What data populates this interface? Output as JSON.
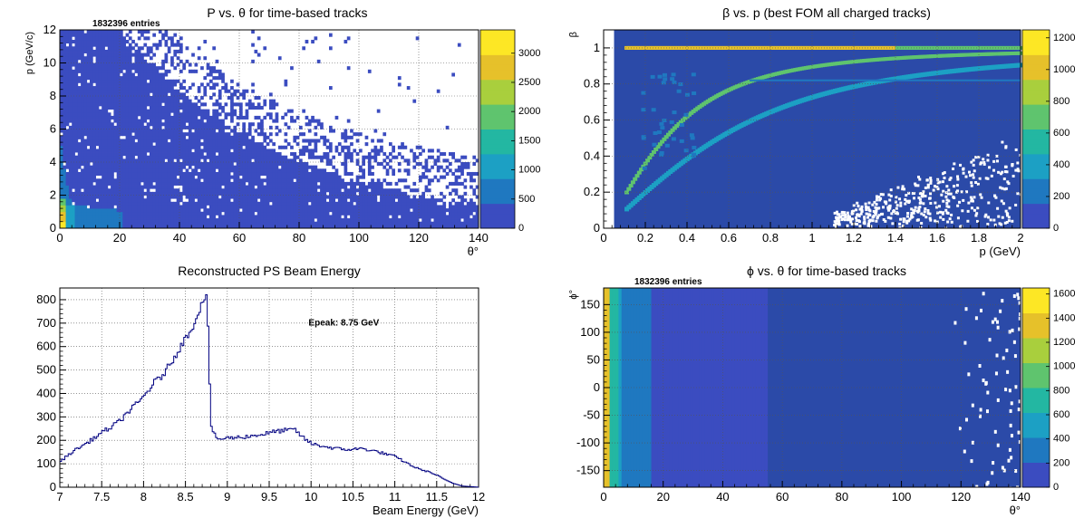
{
  "colors": {
    "background": "#ffffff",
    "plot_fill": "#2b4aa8",
    "histogram_line": "#000080",
    "grid": "#555555",
    "palette": [
      "#3b4cc0",
      "#1f78c0",
      "#1ca0c4",
      "#23b7a2",
      "#5fc46e",
      "#a9cf3d",
      "#e6c12a",
      "#fde725"
    ]
  },
  "chart_data": [
    {
      "id": "p-vs-theta",
      "type": "heatmap",
      "title": "P vs. θ for time-based tracks",
      "stats_text": "1832396 entries",
      "xlabel": "θ°",
      "ylabel": "p (GeV/c)",
      "xlim": [
        0,
        140
      ],
      "ylim": [
        0,
        12
      ],
      "xticks": [
        "0",
        "20",
        "40",
        "60",
        "80",
        "100",
        "120",
        "140"
      ],
      "yticks": [
        "0",
        "2",
        "4",
        "6",
        "8",
        "10",
        "12"
      ],
      "colorbar_range": [
        0,
        3400
      ],
      "colorbar_ticks": [
        "0",
        "500",
        "1000",
        "1500",
        "2000",
        "2500",
        "3000"
      ],
      "grid": true
    },
    {
      "id": "beta-vs-p",
      "type": "heatmap",
      "title": "β vs. p (best FOM all charged tracks)",
      "xlabel": "p (GeV)",
      "ylabel": "β",
      "xlim": [
        0,
        2
      ],
      "ylim": [
        0,
        1.1
      ],
      "xticks": [
        "0",
        "0.2",
        "0.4",
        "0.6",
        "0.8",
        "1",
        "1.2",
        "1.4",
        "1.6",
        "1.8",
        "2"
      ],
      "yticks": [
        "0",
        "0.2",
        "0.4",
        "0.6",
        "0.8",
        "1"
      ],
      "colorbar_range": [
        0,
        1250
      ],
      "colorbar_ticks": [
        "0",
        "200",
        "400",
        "600",
        "800",
        "1000",
        "1200"
      ],
      "grid": true
    },
    {
      "id": "beam-energy",
      "type": "line",
      "title": "Reconstructed PS Beam Energy",
      "annotation": "Epeak: 8.75 GeV",
      "xlabel": "Beam Energy (GeV)",
      "ylabel": "",
      "xlim": [
        7,
        12
      ],
      "ylim": [
        0,
        850
      ],
      "xticks": [
        "7",
        "7.5",
        "8",
        "8.5",
        "9",
        "9.5",
        "10",
        "10.5",
        "11",
        "11.5",
        "12"
      ],
      "yticks": [
        "0",
        "100",
        "200",
        "300",
        "400",
        "500",
        "600",
        "700",
        "800"
      ],
      "grid": true,
      "x": [
        7.0,
        7.1,
        7.2,
        7.3,
        7.4,
        7.5,
        7.6,
        7.7,
        7.8,
        7.9,
        8.0,
        8.1,
        8.2,
        8.3,
        8.4,
        8.5,
        8.6,
        8.65,
        8.7,
        8.75,
        8.78,
        8.8,
        8.85,
        8.9,
        9.0,
        9.2,
        9.4,
        9.6,
        9.8,
        9.9,
        10.0,
        10.2,
        10.4,
        10.6,
        10.8,
        11.0,
        11.1,
        11.2,
        11.3,
        11.4,
        11.5,
        11.6,
        11.7,
        11.8,
        12.0
      ],
      "y": [
        110,
        140,
        165,
        185,
        210,
        235,
        255,
        280,
        320,
        350,
        390,
        440,
        470,
        520,
        580,
        640,
        700,
        750,
        800,
        810,
        450,
        250,
        215,
        205,
        210,
        215,
        225,
        240,
        245,
        210,
        185,
        170,
        160,
        165,
        150,
        130,
        110,
        90,
        75,
        65,
        50,
        30,
        15,
        5,
        0
      ]
    },
    {
      "id": "phi-vs-theta",
      "type": "heatmap",
      "title": "ϕ vs. θ for time-based tracks",
      "stats_text": "1832396 entries",
      "xlabel": "θ°",
      "ylabel": "ϕ°",
      "xlim": [
        0,
        140
      ],
      "ylim": [
        -180,
        180
      ],
      "xticks": [
        "0",
        "20",
        "40",
        "60",
        "80",
        "100",
        "120",
        "140"
      ],
      "yticks": [
        "-150",
        "-100",
        "-50",
        "0",
        "50",
        "100",
        "150"
      ],
      "colorbar_range": [
        0,
        1650
      ],
      "colorbar_ticks": [
        "0",
        "200",
        "400",
        "600",
        "800",
        "1000",
        "1200",
        "1400",
        "1600"
      ],
      "grid": true
    }
  ]
}
